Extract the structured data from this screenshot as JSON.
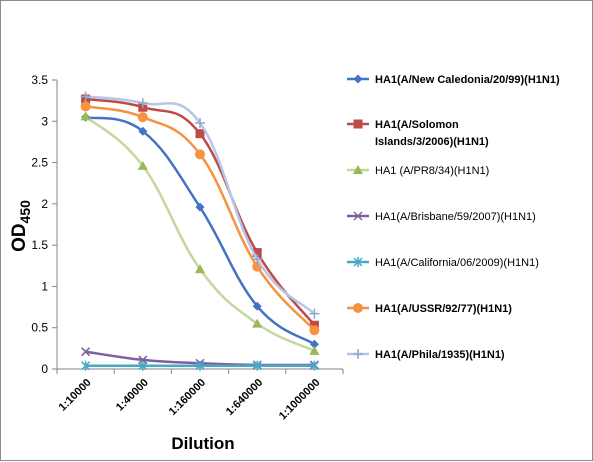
{
  "chart_data": {
    "type": "line",
    "title": "",
    "xlabel": "Dilution",
    "ylabel": "OD",
    "ylabel_subscript": "450",
    "categories": [
      "1:10000",
      "1:40000",
      "1:160000",
      "1:640000",
      "1:1000000"
    ],
    "ylim": [
      0,
      3.5
    ],
    "yticks": [
      "0",
      "0.5",
      "1",
      "1.5",
      "2",
      "2.5",
      "3",
      "3.5"
    ],
    "grid": false,
    "legend_position": "right",
    "series": [
      {
        "name": "HA1(A/New Caledonia/20/99)(H1N1)",
        "name_lines": [
          "HA1(A/New Caledonia/20/99)(H1N1)"
        ],
        "bold": true,
        "color": "#4472c4",
        "marker": "diamond",
        "values": [
          3.05,
          2.88,
          1.96,
          0.76,
          0.3
        ]
      },
      {
        "name": "HA1(A/Solomon Islands/3/2006)(H1N1)",
        "name_lines": [
          "HA1(A/Solomon",
          "Islands/3/2006)(H1N1)"
        ],
        "bold": true,
        "color": "#be4b48",
        "marker": "square",
        "values": [
          3.27,
          3.17,
          2.85,
          1.41,
          0.53
        ]
      },
      {
        "name": "HA1 (A/PR8/34)(H1N1)",
        "name_lines": [
          "HA1 (A/PR8/34)(H1N1)"
        ],
        "bold": false,
        "color": "#98b954",
        "line_color": "#c4d89e",
        "marker": "triangle",
        "values": [
          3.06,
          2.46,
          1.21,
          0.55,
          0.22
        ]
      },
      {
        "name": "HA1(A/Brisbane/59/2007)(H1N1)",
        "name_lines": [
          "HA1(A/Brisbane/59/2007)(H1N1)"
        ],
        "bold": false,
        "color": "#7d60a0",
        "marker": "x",
        "values": [
          0.21,
          0.11,
          0.07,
          0.05,
          0.05
        ]
      },
      {
        "name": "HA1(A/California/06/2009)(H1N1)",
        "name_lines": [
          "HA1(A/California/06/2009)(H1N1)"
        ],
        "bold": false,
        "color": "#46aac5",
        "marker": "star",
        "values": [
          0.04,
          0.04,
          0.04,
          0.04,
          0.04
        ]
      },
      {
        "name": "HA1(A/USSR/92/77)(H1N1)",
        "name_lines": [
          "HA1(A/USSR/92/77)(H1N1)"
        ],
        "bold": true,
        "color": "#f69240",
        "marker": "circle",
        "values": [
          3.18,
          3.05,
          2.6,
          1.24,
          0.47
        ]
      },
      {
        "name": "HA1(A/Phila/1935)(H1N1)",
        "name_lines": [
          "HA1(A/Phila/1935)(H1N1)"
        ],
        "bold": true,
        "color": "#8ea5d3",
        "line_color": "#b7c6e6",
        "marker": "plus",
        "values": [
          3.3,
          3.22,
          2.98,
          1.33,
          0.67
        ]
      }
    ]
  }
}
